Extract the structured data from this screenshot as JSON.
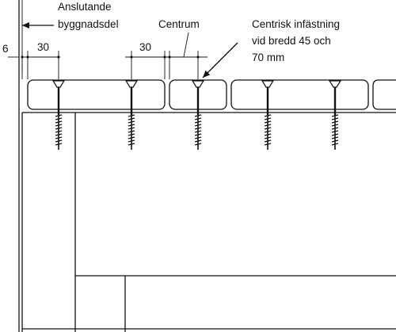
{
  "labels": {
    "adjacent_part_line1": "Anslutande",
    "adjacent_part_line2": "byggnadsdel",
    "centre": "Centrum",
    "centric_line1": "Centrisk infästning",
    "centric_line2": "vid bredd 45 och",
    "centric_line3": "70 mm"
  },
  "dimensions": {
    "gap": "6",
    "edge_left": "30",
    "edge_middle": "30"
  }
}
